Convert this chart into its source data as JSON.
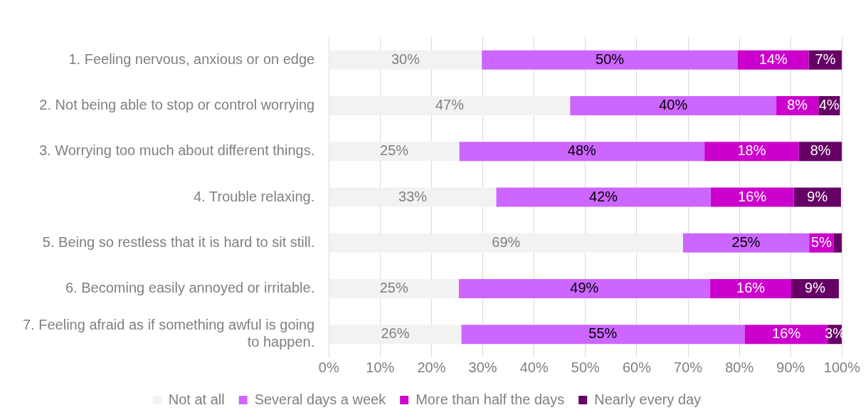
{
  "chart_data": {
    "type": "bar",
    "orientation": "horizontal",
    "stacked": true,
    "categories": [
      "1. Feeling nervous, anxious or on edge",
      "2. Not being able to stop or control worrying",
      "3. Worrying too much about different things.",
      "4. Trouble relaxing.",
      "5. Being so restless that it is hard to sit still.",
      "6. Becoming easily annoyed or irritable.",
      "7. Feeling afraid as if something awful is going to happen."
    ],
    "series": [
      {
        "name": "Not at all",
        "color": "#f2f2f2",
        "values": [
          29.8,
          47,
          25.4,
          32.6,
          69,
          25.3,
          25.8
        ],
        "value_labels": [
          "30%",
          "47%",
          "25%",
          "33%",
          "69%",
          "25%",
          "26%"
        ]
      },
      {
        "name": "Several days a week",
        "color": "#cc66ff",
        "values": [
          49.9,
          40.2,
          47.8,
          41.8,
          24.6,
          49,
          55.2
        ],
        "value_labels": [
          "50%",
          "40%",
          "48%",
          "42%",
          "25%",
          "49%",
          "55%"
        ]
      },
      {
        "name": "More than half the days",
        "color": "#cc00cc",
        "values": [
          13.8,
          8.2,
          18.4,
          16.2,
          4.8,
          15.8,
          16.3
        ],
        "value_labels": [
          "14%",
          "8%",
          "18%",
          "16%",
          "5%",
          "16%",
          "16%"
        ]
      },
      {
        "name": "Nearly every day",
        "color": "#660066",
        "values": [
          6.5,
          4.2,
          8.4,
          9.2,
          1.6,
          9.3,
          2.7
        ],
        "value_labels": [
          "7%",
          "4%",
          "8%",
          "9%",
          null,
          "9%",
          "3%"
        ]
      }
    ],
    "xlim": [
      0,
      100
    ],
    "xticks": [
      {
        "value": 0,
        "label": "0%"
      },
      {
        "value": 10,
        "label": "10%"
      },
      {
        "value": 20,
        "label": "20%"
      },
      {
        "value": 30,
        "label": "30%"
      },
      {
        "value": 40,
        "label": "40%"
      },
      {
        "value": 50,
        "label": "50%"
      },
      {
        "value": 60,
        "label": "60%"
      },
      {
        "value": 70,
        "label": "70%"
      },
      {
        "value": 80,
        "label": "80%"
      },
      {
        "value": 90,
        "label": "90%"
      },
      {
        "value": 100,
        "label": "100%"
      }
    ],
    "grid": "x",
    "legend": "bottom"
  }
}
